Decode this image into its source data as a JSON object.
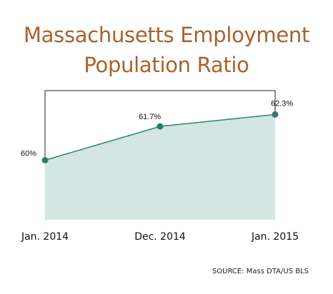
{
  "title_line1": "Massachusetts Employment",
  "title_line2": "Population Ratio",
  "source": "SOURCE: Mass DTA/US BLS",
  "colors": {
    "title": "#a9622c",
    "area": "#d3e6e2",
    "line": "#2f8273",
    "point": "#2f7a6c",
    "frame": "#222222"
  },
  "chart_data": {
    "type": "area",
    "categories": [
      "Jan. 2014",
      "Dec. 2014",
      "Jan. 2015"
    ],
    "values": [
      60,
      61.7,
      62.3
    ],
    "data_labels": [
      "60%",
      "61.7%",
      "62.3%"
    ],
    "ylim": [
      57,
      63.5
    ],
    "grid": false,
    "legend": "none"
  }
}
